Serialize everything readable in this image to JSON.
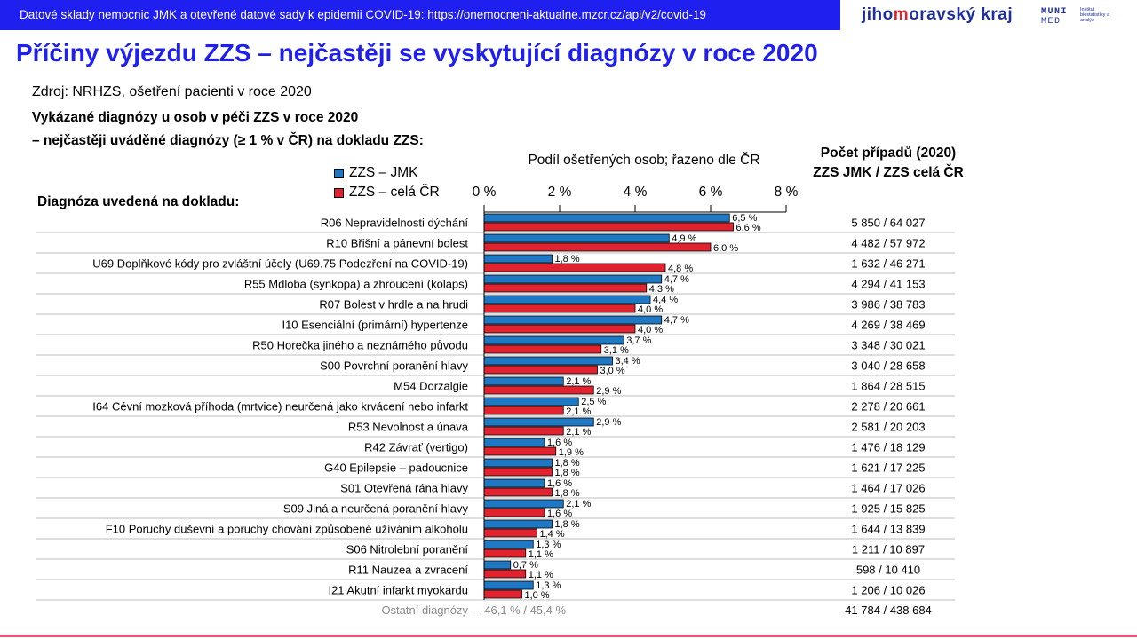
{
  "banner": "Datové sklady nemocnic JMK a otevřené datové sady k epidemii COVID-19: https://onemocneni-aktualne.mzcr.cz/api/v2/covid-19",
  "logos": {
    "jmk_pre": "jiho",
    "jmk_accent": "m",
    "jmk_post": "oravský kraj",
    "muni_line1": "MUNI",
    "muni_line2": "MED",
    "muni_institute": "Institut biostatistiky a analýz"
  },
  "title": "Příčiny výjezdu ZZS – nejčastěji se vyskytující diagnózy v roce 2020",
  "source": "Zdroj: NRHZS, ošetření pacienti v roce 2020",
  "subtitle_line1": "Vykázané diagnózy u osob v péči ZZS v roce 2020",
  "subtitle_line2": "– nejčastěji uváděné diagnózy (≥ 1 % v ČR) na dokladu ZZS:",
  "count_header_line1": "Počet případů (2020)",
  "count_header_line2": "ZZS JMK / ZZS celá ČR",
  "diagnosis_header": "Diagnóza uvedená na dokladu:",
  "colors": {
    "banner": "#1f1ff0",
    "title": "#1f1ff0",
    "jmk": "#1f78c4",
    "cr": "#e0232f",
    "bottom_line": "#f0507a"
  },
  "chart_data": {
    "type": "bar",
    "orientation": "horizontal",
    "xlabel": "Podíl ošetřených osob; řazeno dle ČR",
    "xlim": [
      0,
      8
    ],
    "xticks": [
      "0 %",
      "2 %",
      "4 %",
      "6 %",
      "8 %"
    ],
    "categories": [
      "R06 Nepravidelnosti dýchání",
      "R10 Břišní a pánevní bolest",
      "U69 Doplňkové kódy pro zvláštní účely (U69.75 Podezření na COVID-19)",
      "R55 Mdloba (synkopa) a zhroucení (kolaps)",
      "R07 Bolest v hrdle a na hrudi",
      "I10 Esenciální (primární) hypertenze",
      "R50 Horečka jiného a neznámého původu",
      "S00 Povrchní poranění hlavy",
      "M54 Dorzalgie",
      "I64 Cévní mozková příhoda (mrtvice) neurčená jako krvácení nebo infarkt",
      "R53 Nevolnost a únava",
      "R42 Závrať (vertigo)",
      "G40 Epilepsie – padoucnice",
      "S01 Otevřená rána hlavy",
      "S09 Jiná a neurčená poranění hlavy",
      "F10 Poruchy duševní a poruchy chování způsobené užíváním alkoholu",
      "S06 Nitrolební poranění",
      "R11 Nauzea a zvracení",
      "I21 Akutní infarkt myokardu"
    ],
    "series": [
      {
        "name": "ZZS – JMK",
        "color": "#1f78c4",
        "values": [
          6.5,
          4.9,
          1.8,
          4.7,
          4.4,
          4.7,
          3.7,
          3.4,
          2.1,
          2.5,
          2.9,
          1.6,
          1.8,
          1.6,
          2.1,
          1.8,
          1.3,
          0.7,
          1.3
        ],
        "labels": [
          "6,5 %",
          "4,9 %",
          "1,8 %",
          "4,7 %",
          "4,4 %",
          "4,7 %",
          "3,7 %",
          "3,4 %",
          "2,1 %",
          "2,5 %",
          "2,9 %",
          "1,6 %",
          "1,8 %",
          "1,6 %",
          "2,1 %",
          "1,8 %",
          "1,3 %",
          "0,7 %",
          "1,3 %"
        ]
      },
      {
        "name": "ZZS – celá ČR",
        "color": "#e0232f",
        "values": [
          6.6,
          6.0,
          4.8,
          4.3,
          4.0,
          4.0,
          3.1,
          3.0,
          2.9,
          2.1,
          2.1,
          1.9,
          1.8,
          1.8,
          1.6,
          1.4,
          1.1,
          1.1,
          1.0
        ],
        "labels": [
          "6,6 %",
          "6,0 %",
          "4,8 %",
          "4,3 %",
          "4,0 %",
          "4,0 %",
          "3,1 %",
          "3,0 %",
          "2,9 %",
          "2,1 %",
          "2,1 %",
          "1,9 %",
          "1,8 %",
          "1,8 %",
          "1,6 %",
          "1,4 %",
          "1,1 %",
          "1,1 %",
          "1,0 %"
        ]
      }
    ],
    "counts": [
      "5 850 / 64 027",
      "4 482 / 57 972",
      "1 632 / 46 271",
      "4 294 / 41 153",
      "3 986 / 38 783",
      "4 269 / 38 469",
      "3 348 / 30 021",
      "3 040 / 28 658",
      "1 864 / 28 515",
      "2 278 / 20 661",
      "2 581 / 20 203",
      "1 476 / 18 129",
      "1 621 / 17 225",
      "1 464 / 17 026",
      "1 925 / 15 825",
      "1 644 / 13 839",
      "1 211 / 10 897",
      "598 / 10 410",
      "1 206 / 10 026"
    ],
    "other_label": "Ostatní diagnózy",
    "other_percent": "-- 46,1 % / 45,4 %",
    "other_count": "41 784 / 438 684"
  }
}
